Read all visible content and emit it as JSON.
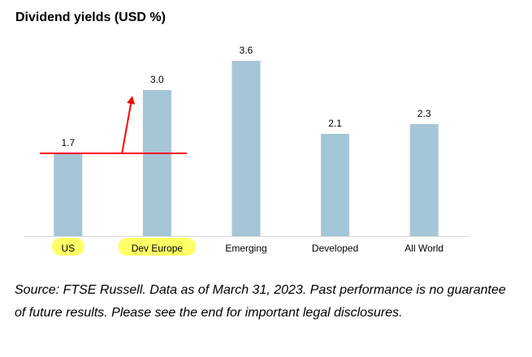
{
  "chart_data": {
    "type": "bar",
    "title": "Dividend yields (USD %)",
    "categories": [
      "US",
      "Dev Europe",
      "Emerging",
      "Developed",
      "All World"
    ],
    "values": [
      1.7,
      3.0,
      3.6,
      2.1,
      2.3
    ],
    "value_labels": [
      "1.7",
      "3.0",
      "3.6",
      "2.1",
      "2.3"
    ],
    "ylim": [
      0,
      4.2
    ],
    "grid": false,
    "bar_color": "#a5c6d6",
    "annotations": {
      "reference_line_value": 1.7,
      "reference_line_color": "#ff0000",
      "arrow_color": "#ff0000",
      "highlighted_categories": [
        "US",
        "Dev Europe"
      ],
      "highlight_color": "#ffff66"
    }
  },
  "source_note": "Source: FTSE Russell. Data as of March 31, 2023. Past performance is no guarantee of future results. Please see the end for important legal disclosures."
}
